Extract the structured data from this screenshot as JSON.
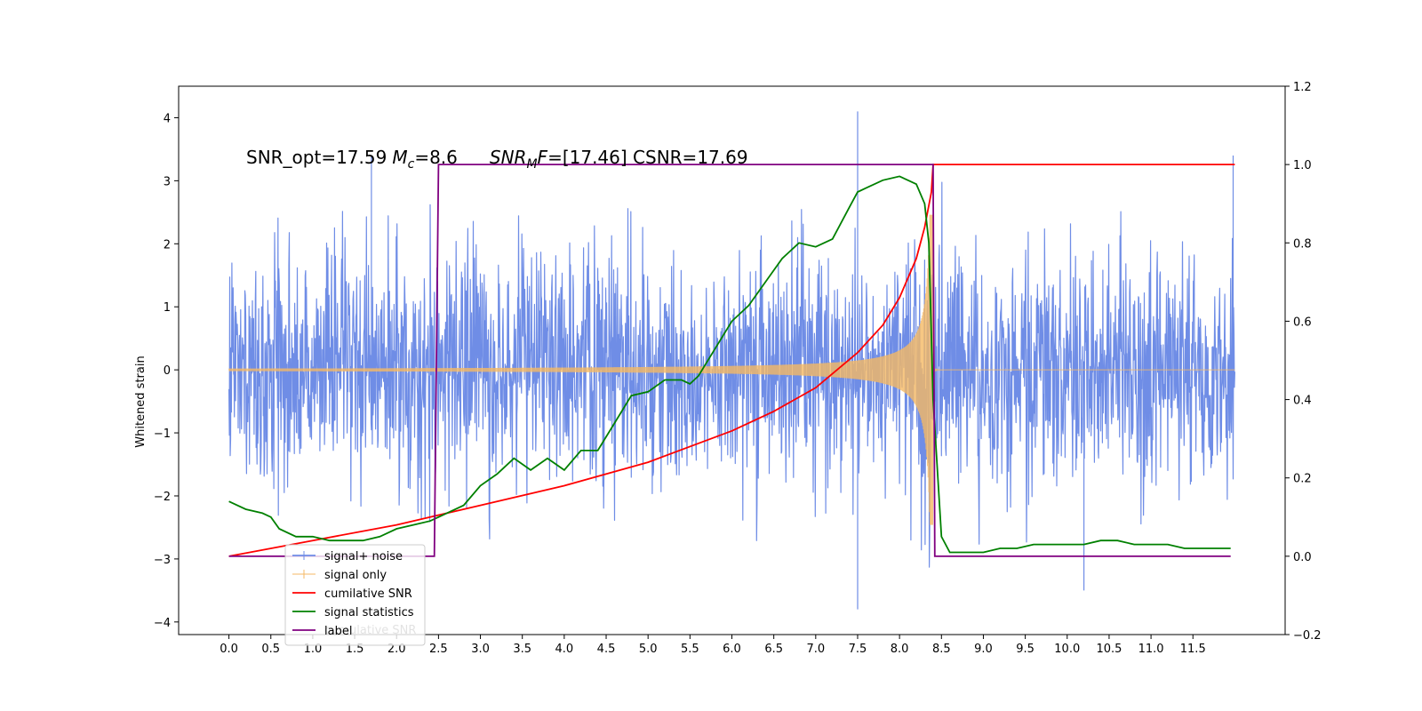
{
  "chart_data": {
    "type": "line",
    "title_parts": {
      "snr_opt": "SNR_opt=17.59",
      "mc_symbol": "M",
      "mc_sub": "c",
      "mc_value": "=8.6",
      "snrmf_symbol": "SNR",
      "snrmf_sub": "M",
      "snrmf_f": "F",
      "snrmf_value": "=[17.46] CSNR=17.69"
    },
    "ylabel": "Whitened strain",
    "xlim": [
      -0.6,
      12.6
    ],
    "ylim": [
      -4.2,
      4.5
    ],
    "y2lim": [
      -0.2,
      1.2
    ],
    "x_ticks": [
      "0.0",
      "0.5",
      "1.0",
      "1.5",
      "2.0",
      "2.5",
      "3.0",
      "3.5",
      "4.0",
      "4.5",
      "5.0",
      "5.5",
      "6.0",
      "6.5",
      "7.0",
      "7.5",
      "8.0",
      "8.5",
      "9.0",
      "9.5",
      "10.0",
      "10.5",
      "11.0",
      "11.5"
    ],
    "y_ticks": [
      "4",
      "3",
      "2",
      "1",
      "0",
      "−1",
      "−2",
      "−3",
      "−4"
    ],
    "y2_ticks": [
      "1.2",
      "1.0",
      "0.8",
      "0.6",
      "0.4",
      "0.2",
      "0.0",
      "−0.2"
    ],
    "legend_position": "lower-left",
    "series": [
      {
        "name": "signal+ noise",
        "color": "#6f8de6",
        "axis": "left",
        "x_range": [
          0,
          12
        ],
        "envelope_sigma": 0.9,
        "approx_extremes": [
          [
            7.5,
            4.1
          ],
          [
            7.5,
            -3.8
          ],
          [
            1.7,
            3.4
          ],
          [
            11.98,
            3.4
          ],
          [
            10.2,
            -3.5
          ]
        ]
      },
      {
        "name": "signal only",
        "color": "#f5b964",
        "axis": "left",
        "chirp_start": 0,
        "chirp_merger": 8.4,
        "amplitude_start": 0.02,
        "amplitude_merger": 2.4
      },
      {
        "name": "cumilative SNR",
        "color": "#ff0000",
        "axis": "right",
        "x": [
          0,
          1,
          2,
          3,
          4,
          5,
          6,
          6.5,
          7,
          7.5,
          7.8,
          8.0,
          8.2,
          8.3,
          8.38,
          8.4,
          12
        ],
        "y": [
          0.0,
          0.04,
          0.08,
          0.13,
          0.18,
          0.24,
          0.32,
          0.37,
          0.43,
          0.52,
          0.59,
          0.66,
          0.76,
          0.84,
          0.93,
          1.0,
          1.0
        ]
      },
      {
        "name": "signal statistics",
        "color": "#008000",
        "axis": "right",
        "x": [
          0,
          0.2,
          0.4,
          0.5,
          0.6,
          0.8,
          1.0,
          1.2,
          1.4,
          1.6,
          1.8,
          2.0,
          2.2,
          2.4,
          2.5,
          2.6,
          2.8,
          3.0,
          3.2,
          3.4,
          3.6,
          3.8,
          4.0,
          4.2,
          4.4,
          4.6,
          4.8,
          5.0,
          5.2,
          5.4,
          5.5,
          5.6,
          5.8,
          6.0,
          6.2,
          6.4,
          6.6,
          6.8,
          7.0,
          7.2,
          7.4,
          7.5,
          7.6,
          7.8,
          8.0,
          8.1,
          8.2,
          8.3,
          8.35,
          8.4,
          8.5,
          8.6,
          8.8,
          9.0,
          9.2,
          9.4,
          9.6,
          9.8,
          10.0,
          10.2,
          10.4,
          10.6,
          10.8,
          11.0,
          11.2,
          11.4,
          11.6,
          11.8,
          11.95
        ],
        "y": [
          0.14,
          0.12,
          0.11,
          0.1,
          0.07,
          0.05,
          0.05,
          0.04,
          0.04,
          0.04,
          0.05,
          0.07,
          0.08,
          0.09,
          0.1,
          0.11,
          0.13,
          0.18,
          0.21,
          0.25,
          0.22,
          0.25,
          0.22,
          0.27,
          0.27,
          0.34,
          0.41,
          0.42,
          0.45,
          0.45,
          0.44,
          0.46,
          0.53,
          0.6,
          0.64,
          0.7,
          0.76,
          0.8,
          0.79,
          0.81,
          0.89,
          0.93,
          0.94,
          0.96,
          0.97,
          0.96,
          0.95,
          0.9,
          0.8,
          0.4,
          0.05,
          0.01,
          0.01,
          0.01,
          0.02,
          0.02,
          0.03,
          0.03,
          0.03,
          0.03,
          0.04,
          0.04,
          0.03,
          0.03,
          0.03,
          0.02,
          0.02,
          0.02,
          0.02
        ]
      },
      {
        "name": "label",
        "color": "#800080",
        "axis": "right",
        "x": [
          0,
          2.45,
          2.5,
          8.4,
          8.42,
          11.95
        ],
        "y": [
          0,
          0,
          1,
          1,
          0,
          0
        ]
      }
    ],
    "legend_overlap_text": "lative SNR"
  }
}
